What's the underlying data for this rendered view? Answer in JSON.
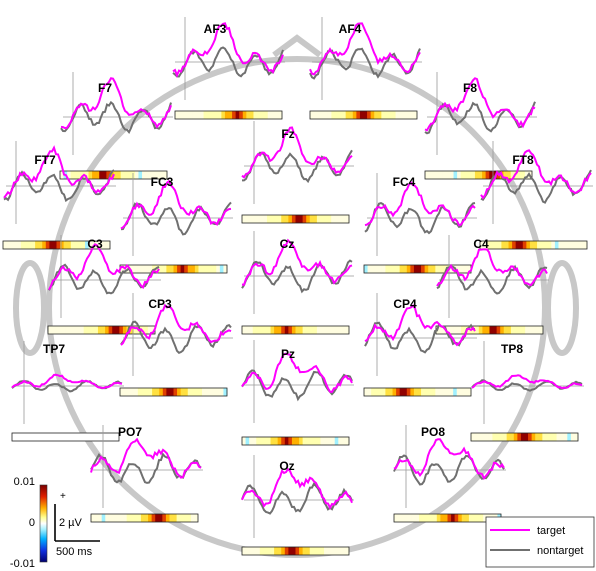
{
  "chart_data": {
    "type": "line",
    "title": "",
    "legend": {
      "placement": "bottom-right",
      "entries": [
        {
          "name": "target",
          "color": "#ff00ff"
        },
        {
          "name": "nontarget",
          "color": "#707070"
        }
      ]
    },
    "colorbar": {
      "max_label": "0.01",
      "mid_label": "0",
      "min_label": "-0.01",
      "colormap": "jet-like (dark blue to white to dark red)"
    },
    "scale_bar": {
      "voltage_label": "2 µV",
      "time_label": "500 ms",
      "polarity_label": "+"
    },
    "channels": [
      {
        "name": "AF3"
      },
      {
        "name": "AF4"
      },
      {
        "name": "F7"
      },
      {
        "name": "F8"
      },
      {
        "name": "Fz"
      },
      {
        "name": "FT7"
      },
      {
        "name": "FT8"
      },
      {
        "name": "FC3"
      },
      {
        "name": "FC4"
      },
      {
        "name": "Cz"
      },
      {
        "name": "C3"
      },
      {
        "name": "C4"
      },
      {
        "name": "CP3"
      },
      {
        "name": "CP4"
      },
      {
        "name": "TP7"
      },
      {
        "name": "TP8"
      },
      {
        "name": "Pz"
      },
      {
        "name": "PO7"
      },
      {
        "name": "PO8"
      },
      {
        "name": "Oz"
      }
    ]
  }
}
